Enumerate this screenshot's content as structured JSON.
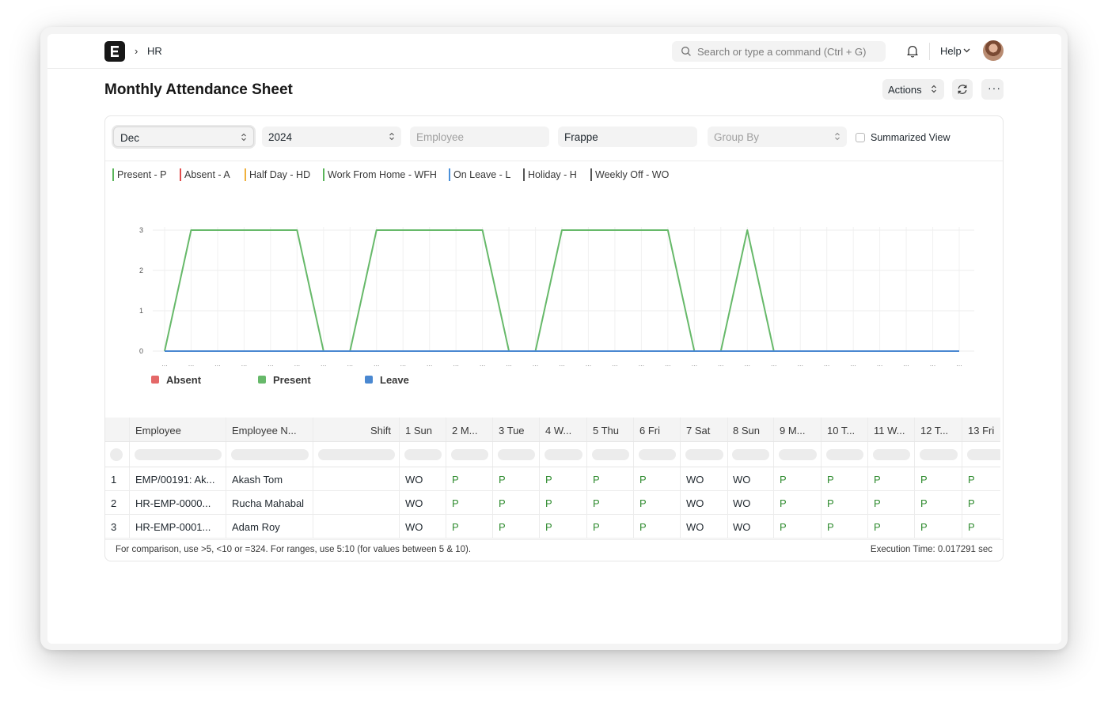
{
  "breadcrumb": {
    "item": "HR"
  },
  "search": {
    "placeholder": "Search or type a command (Ctrl + G)"
  },
  "nav": {
    "help_label": "Help"
  },
  "page": {
    "title": "Monthly Attendance Sheet"
  },
  "toolbar": {
    "actions_label": "Actions",
    "more_label": "···"
  },
  "filters": {
    "month": "Dec",
    "year": "2024",
    "employee_placeholder": "Employee",
    "company": "Frappe",
    "group_by_placeholder": "Group By",
    "summarized_label": "Summarized View"
  },
  "status_legend": [
    {
      "label": "Present - P",
      "color": "#5ab55a"
    },
    {
      "label": "Absent - A",
      "color": "#e24c4c"
    },
    {
      "label": "Half Day - HD",
      "color": "#f0b03c"
    },
    {
      "label": "Work From Home - WFH",
      "color": "#5ab55a"
    },
    {
      "label": "On Leave - L",
      "color": "#4a90d9"
    },
    {
      "label": "Holiday - H",
      "color": "#555555"
    },
    {
      "label": "Weekly Off - WO",
      "color": "#555555"
    }
  ],
  "chart_data": {
    "type": "line",
    "x_tick_label": "...",
    "ylim": [
      0,
      3
    ],
    "y_ticks": [
      "0",
      "1",
      "2",
      "3"
    ],
    "grid": true,
    "legend": "bottom-left",
    "x": [
      1,
      2,
      3,
      4,
      5,
      6,
      7,
      8,
      9,
      10,
      11,
      12,
      13,
      14,
      15,
      16,
      17,
      18,
      19,
      20,
      21,
      22,
      23,
      24,
      25,
      26,
      27,
      28,
      29,
      30,
      31
    ],
    "series": [
      {
        "name": "Absent",
        "color": "#e46868",
        "values": [
          0,
          0,
          0,
          0,
          0,
          0,
          0,
          0,
          0,
          0,
          0,
          0,
          0,
          0,
          0,
          0,
          0,
          0,
          0,
          0,
          0,
          0,
          0,
          0,
          0,
          0,
          0,
          0,
          0,
          0,
          0
        ]
      },
      {
        "name": "Present",
        "color": "#67b96a",
        "values": [
          0,
          3,
          3,
          3,
          3,
          3,
          0,
          0,
          3,
          3,
          3,
          3,
          3,
          0,
          0,
          3,
          3,
          3,
          3,
          3,
          0,
          0,
          3,
          0,
          0,
          0,
          0,
          0,
          0,
          0,
          0
        ]
      },
      {
        "name": "Leave",
        "color": "#4a88d1",
        "values": [
          0,
          0,
          0,
          0,
          0,
          0,
          0,
          0,
          0,
          0,
          0,
          0,
          0,
          0,
          0,
          0,
          0,
          0,
          0,
          0,
          0,
          0,
          0,
          0,
          0,
          0,
          0,
          0,
          0,
          0,
          0
        ]
      }
    ]
  },
  "table": {
    "columns": [
      "Employee",
      "Employee N...",
      "Shift",
      "1 Sun",
      "2 M...",
      "3 Tue",
      "4 W...",
      "5 Thu",
      "6 Fri",
      "7 Sat",
      "8 Sun",
      "9 M...",
      "10 T...",
      "11 W...",
      "12 T...",
      "13 Fri"
    ],
    "rows": [
      {
        "idx": "1",
        "employee": "EMP/00191: Ak...",
        "name": "Akash Tom",
        "shift": "",
        "days": [
          "WO",
          "P",
          "P",
          "P",
          "P",
          "P",
          "WO",
          "WO",
          "P",
          "P",
          "P",
          "P",
          "P"
        ]
      },
      {
        "idx": "2",
        "employee": "HR-EMP-0000...",
        "name": "Rucha Mahabal",
        "shift": "",
        "days": [
          "WO",
          "P",
          "P",
          "P",
          "P",
          "P",
          "WO",
          "WO",
          "P",
          "P",
          "P",
          "P",
          "P"
        ]
      },
      {
        "idx": "3",
        "employee": "HR-EMP-0001...",
        "name": "Adam Roy",
        "shift": "",
        "days": [
          "WO",
          "P",
          "P",
          "P",
          "P",
          "P",
          "WO",
          "WO",
          "P",
          "P",
          "P",
          "P",
          "P"
        ]
      }
    ]
  },
  "footer": {
    "note": "For comparison, use >5, <10 or =324. For ranges, use 5:10 (for values between 5 & 10).",
    "execution_time": "Execution Time: 0.017291 sec"
  }
}
